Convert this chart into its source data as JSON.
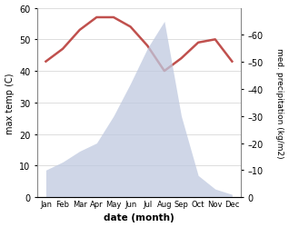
{
  "months": [
    "Jan",
    "Feb",
    "Mar",
    "Apr",
    "May",
    "Jun",
    "Jul",
    "Aug",
    "Sep",
    "Oct",
    "Nov",
    "Dec"
  ],
  "temperature": [
    43,
    47,
    53,
    57,
    57,
    54,
    48,
    40,
    44,
    49,
    50,
    43
  ],
  "precipitation": [
    10,
    13,
    17,
    20,
    30,
    42,
    55,
    65,
    30,
    8,
    3,
    1
  ],
  "temp_color": "#c0504d",
  "precip_fill_color": "#bfc9e0",
  "xlabel": "date (month)",
  "ylabel_left": "max temp (C)",
  "ylabel_right": "med. precipitation (kg/m2)",
  "ylim_left": [
    0,
    60
  ],
  "ylim_right": [
    0,
    70
  ],
  "yticks_left": [
    0,
    10,
    20,
    30,
    40,
    50,
    60
  ],
  "yticks_right": [
    0,
    10,
    20,
    30,
    40,
    50,
    60
  ],
  "background_color": "#ffffff",
  "grid_color": "#d0d0d0"
}
